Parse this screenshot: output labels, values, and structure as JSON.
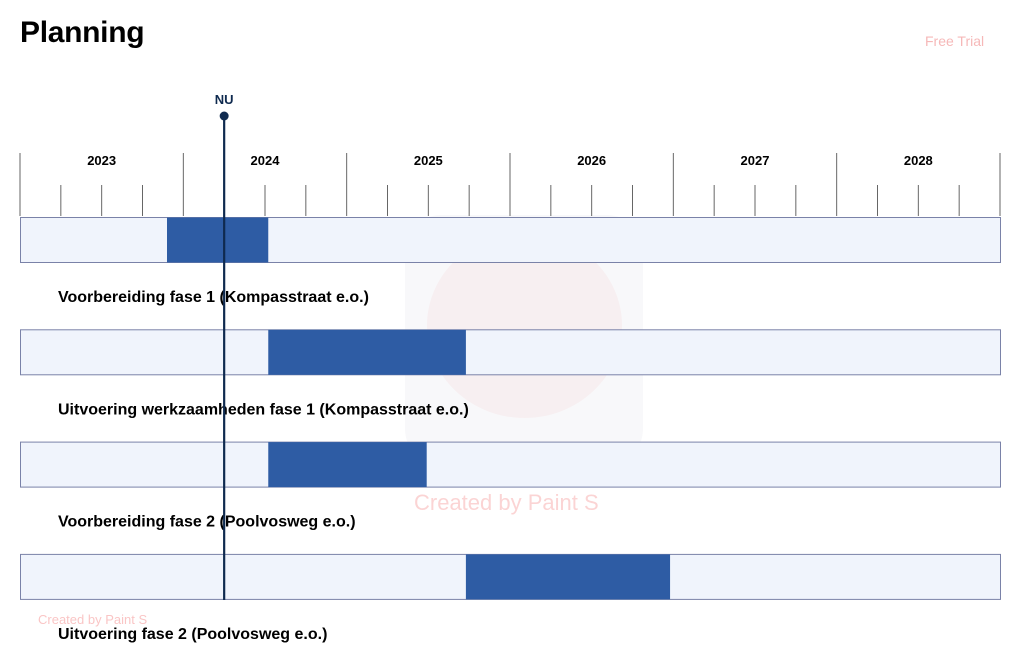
{
  "header": {
    "title": "Planning",
    "watermark_top": "Free Trial",
    "watermark_center": "Created by Paint S",
    "watermark_bottom": "Created by Paint S"
  },
  "colors": {
    "bar_fill": "#2e5ca4",
    "track_fill": "#f0f4fc",
    "track_border": "#7a82a8",
    "now_line": "#0f2a4f",
    "tick": "#666666"
  },
  "chart_data": {
    "type": "bar",
    "subtype": "gantt",
    "title": "",
    "x_axis": {
      "min": 2022.75,
      "max": 2028.75,
      "tick_labels": [
        "2023",
        "2024",
        "2025",
        "2026",
        "2027",
        "2028"
      ],
      "minor_ticks_per_year": 4
    },
    "now_marker": {
      "label": "NU",
      "value": 2024.0
    },
    "tasks": [
      {
        "name": "Voorbereiding fase 1 (Kompasstraat e.o.)",
        "start": 2023.65,
        "end": 2024.27
      },
      {
        "name": "Uitvoering werkzaamheden fase 1 (Kompasstraat e.o.)",
        "start": 2024.27,
        "end": 2025.48
      },
      {
        "name": "Voorbereiding fase 2 (Poolvosweg e.o.)",
        "start": 2024.27,
        "end": 2025.24
      },
      {
        "name": "Uitvoering fase 2 (Poolvosweg e.o.)",
        "start": 2025.48,
        "end": 2026.73
      }
    ]
  }
}
